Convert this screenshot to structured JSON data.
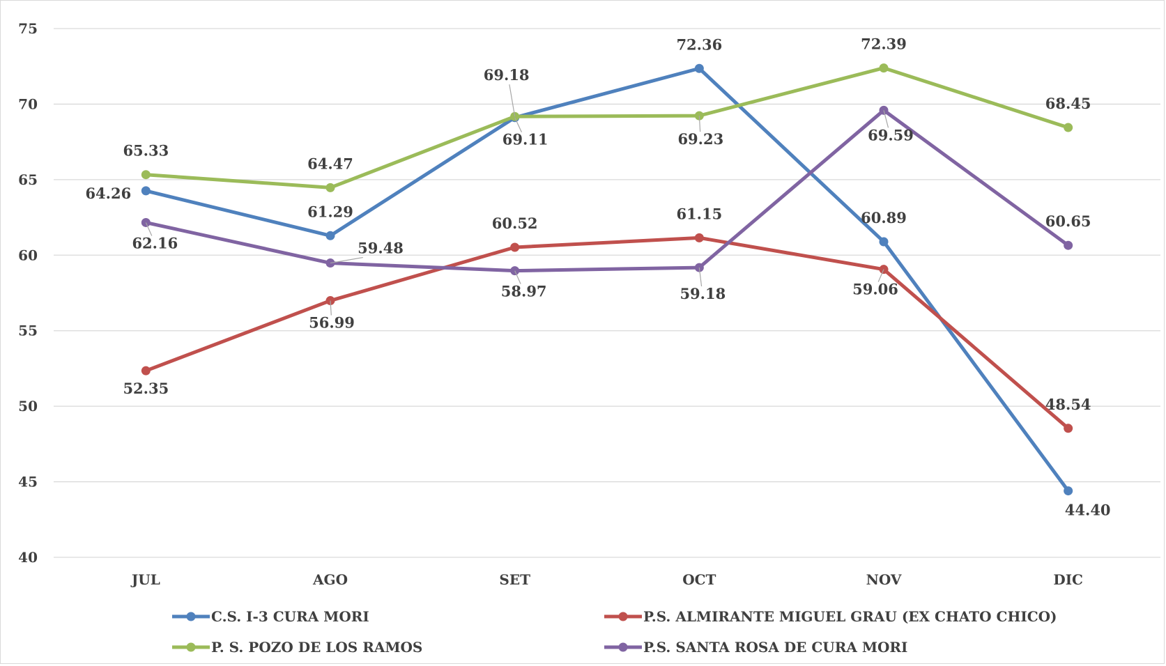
{
  "chart_data": {
    "type": "line",
    "title": "",
    "xlabel": "",
    "ylabel": "",
    "ylim": [
      40,
      75
    ],
    "yticks": [
      40,
      45,
      50,
      55,
      60,
      65,
      70,
      75
    ],
    "grid": true,
    "legend_position": "bottom",
    "categories": [
      "JUL",
      "AGO",
      "SET",
      "OCT",
      "NOV",
      "DIC"
    ],
    "series": [
      {
        "name": "C.S. I-3 CURA MORI",
        "color": "#4f81bd",
        "values": [
          64.26,
          61.29,
          69.11,
          72.36,
          60.89,
          44.4
        ],
        "labels": [
          "64.26",
          "61.29",
          "69.11",
          "72.36",
          "60.89",
          "44.40"
        ]
      },
      {
        "name": "P.S. ALMIRANTE MIGUEL GRAU (EX CHATO CHICO)",
        "color": "#c0504d",
        "values": [
          52.35,
          56.99,
          60.52,
          61.15,
          59.06,
          48.54
        ],
        "labels": [
          "52.35",
          "56.99",
          "60.52",
          "61.15",
          "59.06",
          "48.54"
        ]
      },
      {
        "name": "P. S. POZO DE LOS RAMOS",
        "color": "#9bbb59",
        "values": [
          65.33,
          64.47,
          69.18,
          69.23,
          72.39,
          68.45
        ],
        "labels": [
          "65.33",
          "64.47",
          "69.18",
          "69.23",
          "72.39",
          "68.45"
        ]
      },
      {
        "name": "P.S. SANTA ROSA DE CURA MORI",
        "color": "#8064a2",
        "values": [
          62.16,
          59.48,
          58.97,
          59.18,
          69.59,
          60.65
        ],
        "labels": [
          "62.16",
          "59.48",
          "58.97",
          "59.18",
          "69.59",
          "60.65"
        ]
      }
    ]
  }
}
